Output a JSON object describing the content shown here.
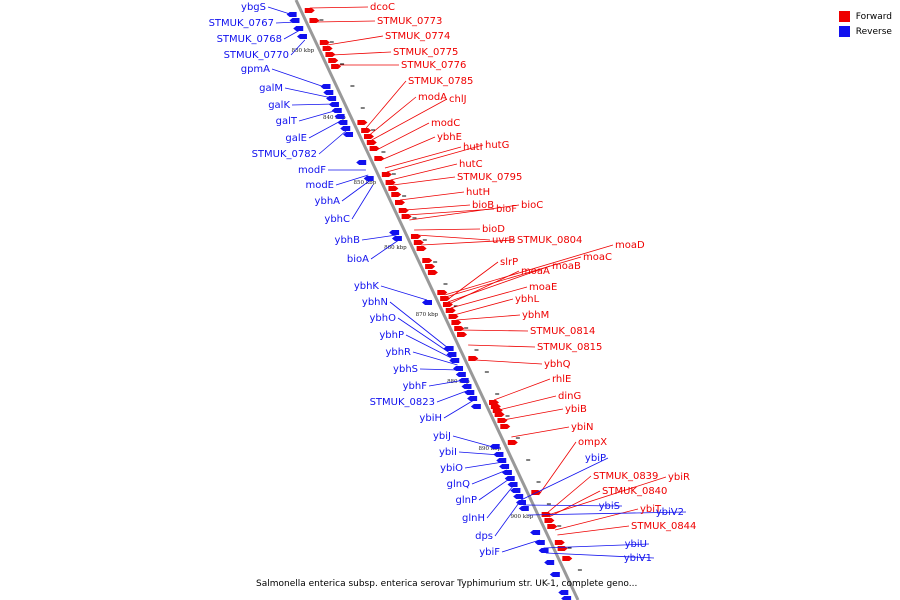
{
  "colors": {
    "forward": "#ee0000",
    "reverse": "#1111ee",
    "backbone": "#999999"
  },
  "legend": [
    {
      "label": "Forward",
      "color": "#ee0000"
    },
    {
      "label": "Reverse",
      "color": "#1111ee"
    }
  ],
  "caption": "Salmonella enterica subsp. enterica serovar Typhimurium str. UK-1, complete geno...",
  "ticks": [
    "830 kbp",
    "840 kbp",
    "850 kbp",
    "860 kbp",
    "870 kbp",
    "880 kbp",
    "890 kbp",
    "900 kbp"
  ],
  "forward_genes": [
    "dcoC",
    "STMUK_0773",
    "STMUK_0774",
    "STMUK_0775",
    "STMUK_0776",
    "STMUK_0785",
    "modA",
    "chlJ",
    "modC",
    "ybhE",
    "hutI",
    "hutG",
    "hutC",
    "STMUK_0795",
    "hutH",
    "bioB",
    "bioF",
    "bioC",
    "bioD",
    "uvrB",
    "STMUK_0804",
    "moaD",
    "moaC",
    "slrP",
    "moaB",
    "moaA",
    "moaE",
    "ybhL",
    "ybhM",
    "STMUK_0814",
    "STMUK_0815",
    "ybhQ",
    "rhlE",
    "dinG",
    "ybiB",
    "ybiN",
    "ompX",
    "STMUK_0839",
    "ybiR",
    "STMUK_0840",
    "ybiT",
    "STMUK_0844"
  ],
  "reverse_genes": [
    "ybgS",
    "STMUK_0767",
    "STMUK_0768",
    "STMUK_0770",
    "gpmA",
    "galM",
    "galK",
    "galT",
    "galE",
    "STMUK_0782",
    "modF",
    "modE",
    "ybhA",
    "ybhC",
    "ybhB",
    "bioA",
    "ybhK",
    "ybhN",
    "ybhO",
    "ybhP",
    "ybhR",
    "ybhS",
    "ybhF",
    "STMUK_0823",
    "ybiH",
    "ybiJ",
    "ybiI",
    "ybiO",
    "glnQ",
    "glnP",
    "glnH",
    "dps",
    "ybiF",
    "ybiP",
    "ybiS",
    "ybiV2",
    "ybiU",
    "ybiV1"
  ]
}
